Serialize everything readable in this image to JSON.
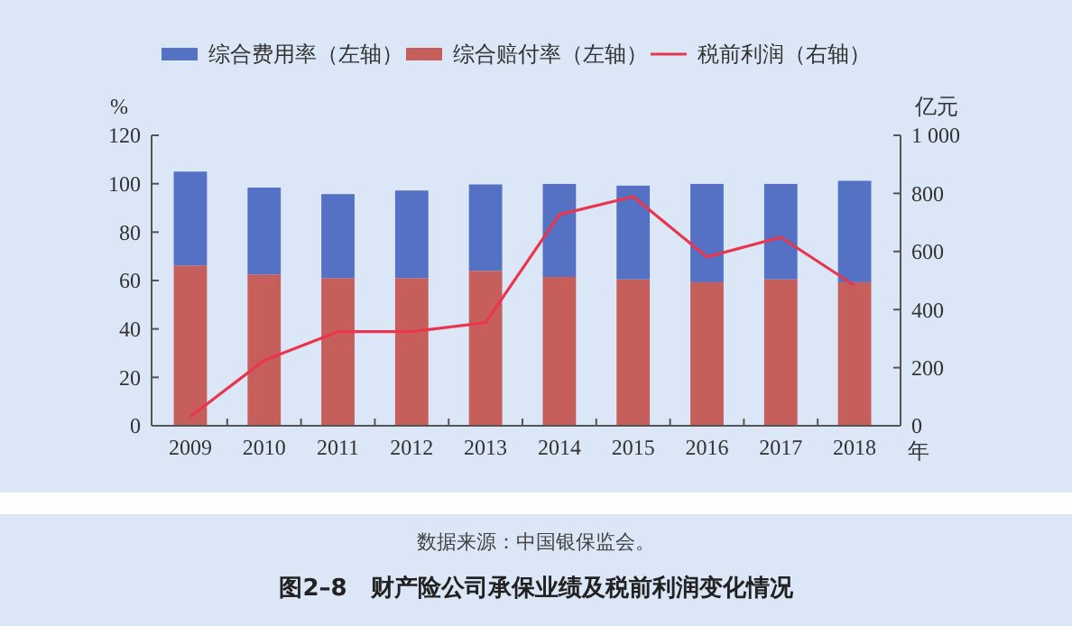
{
  "chart_data": {
    "type": "bar",
    "stacked": true,
    "title": "图2–8　财产险公司承保业绩及税前利润变化情况",
    "annotations": [
      "数据来源：中国银保监会。"
    ],
    "xlabel": "年",
    "ylabel": "%",
    "y2label": "亿元",
    "categories": [
      "2009",
      "2010",
      "2011",
      "2012",
      "2013",
      "2014",
      "2015",
      "2016",
      "2017",
      "2018"
    ],
    "series": [
      {
        "name": "综合赔付率（左轴）",
        "color": "#c65f5c",
        "values": [
          66.2,
          62.5,
          61,
          61,
          64,
          61.5,
          60.5,
          59.3,
          60.5,
          59.3
        ]
      },
      {
        "name": "综合费用率（左轴）",
        "color": "#5571c4",
        "values": [
          38.8,
          35.9,
          34.7,
          36.2,
          35.7,
          38.4,
          38.7,
          40.6,
          39.4,
          41.9
        ]
      },
      {
        "name": "税前利润（右轴）",
        "type": "line",
        "axis": "y2",
        "color": "#e8364f",
        "values": [
          31,
          225,
          324,
          324,
          355,
          727,
          789,
          581,
          649,
          483
        ]
      }
    ],
    "ylim": [
      0,
      120
    ],
    "yticks": [
      0,
      20,
      40,
      60,
      80,
      100,
      120
    ],
    "y2lim": [
      0,
      1000
    ],
    "y2ticks": [
      0,
      200,
      400,
      600,
      800,
      {
        "value": 1000,
        "label": "1 000"
      }
    ],
    "legend": "top",
    "grid": false
  }
}
